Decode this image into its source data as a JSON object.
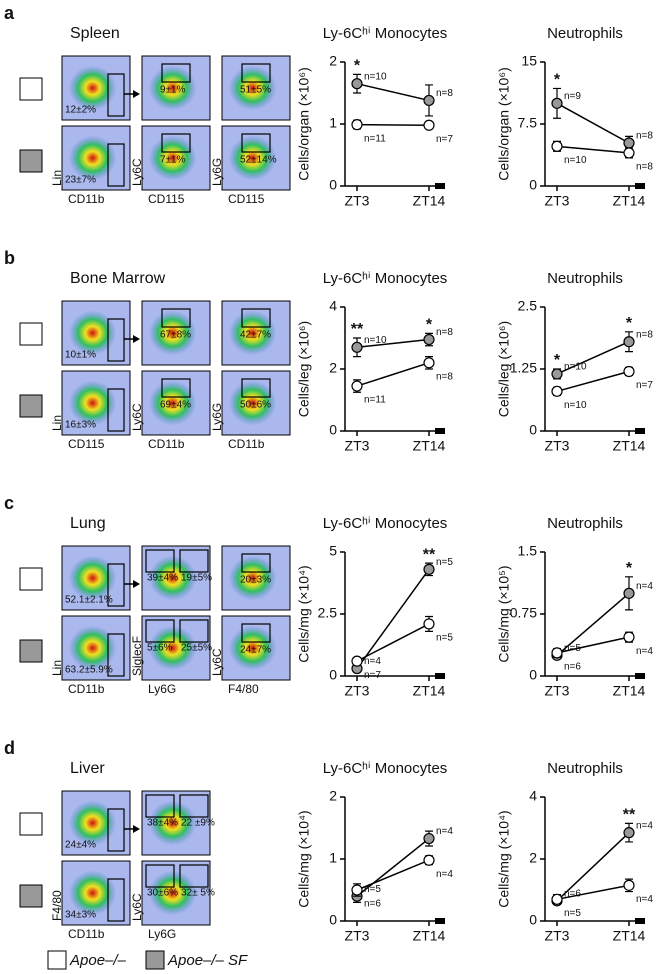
{
  "panels": [
    {
      "letter": "a",
      "tissue": "Spleen",
      "gates": [
        [
          [
            "12±2%"
          ],
          [
            "9±1%"
          ],
          [
            "51±5%"
          ]
        ],
        [
          [
            "23±7%"
          ],
          [
            "7±1%"
          ],
          [
            "52±14%"
          ]
        ]
      ],
      "x_axes": [
        "CD11b",
        "CD115",
        "CD115"
      ],
      "y_axes": [
        "Lin",
        "Ly6C",
        "Ly6G"
      ]
    },
    {
      "letter": "b",
      "tissue": "Bone Marrow",
      "gates": [
        [
          [
            "10±1%"
          ],
          [
            "67±8%"
          ],
          [
            "42±7%"
          ]
        ],
        [
          [
            "16±3%"
          ],
          [
            "69±4%"
          ],
          [
            "50±6%"
          ]
        ]
      ],
      "x_axes": [
        "CD115",
        "CD11b",
        "CD11b"
      ],
      "y_axes": [
        "Lin",
        "Ly6C",
        "Ly6G"
      ]
    },
    {
      "letter": "c",
      "tissue": "Lung",
      "gates": [
        [
          [
            "52.1±2.1%"
          ],
          [
            "39±4%",
            "19±5%"
          ],
          [
            "20±3%"
          ]
        ],
        [
          [
            "63.2±5.9%"
          ],
          [
            "5±6%",
            "25±5%"
          ],
          [
            "24±7%"
          ]
        ]
      ],
      "x_axes": [
        "CD11b",
        "Ly6G",
        "F4/80"
      ],
      "y_axes": [
        "Lin",
        "SiglecF",
        "Ly6C"
      ]
    },
    {
      "letter": "d",
      "tissue": "Liver",
      "gates": [
        [
          [
            "24±4%"
          ],
          [
            "38±4%",
            "22 ±9%"
          ]
        ],
        [
          [
            "34±3%"
          ],
          [
            "30±6%",
            "32± 5%"
          ]
        ]
      ],
      "x_axes": [
        "CD11b",
        "Ly6G"
      ],
      "y_axes": [
        "F4/80",
        "Ly6C"
      ]
    }
  ],
  "legend": [
    {
      "name": "Apoe–/–",
      "color": "#ffffff"
    },
    {
      "name": "Apoe–/– SF",
      "color": "#999999"
    }
  ],
  "chart_data": [
    {
      "type": "line",
      "title": "Ly-6Cʰⁱ Monocytes",
      "y_label": "Cells/organ (×10⁶)",
      "categories": [
        "ZT3",
        "ZT14"
      ],
      "ylim": [
        0,
        2
      ],
      "yticks": [
        0,
        1,
        2
      ],
      "series": [
        {
          "color": "#999999",
          "values": [
            1.65,
            1.38
          ],
          "errors": [
            0.15,
            0.25
          ],
          "n_labels": [
            "n=10",
            "n=8"
          ],
          "significance": [
            "*",
            null
          ]
        },
        {
          "color": "#ffffff",
          "values": [
            0.99,
            0.98
          ],
          "errors": [
            0.07,
            0.05
          ],
          "n_labels": [
            "n=11",
            "n=7"
          ]
        }
      ]
    },
    {
      "type": "line",
      "title": "Neutrophils",
      "y_label": "Cells/organ (×10⁶)",
      "categories": [
        "ZT3",
        "ZT14"
      ],
      "ylim": [
        0,
        15
      ],
      "yticks": [
        0,
        7.5,
        15
      ],
      "series": [
        {
          "color": "#999999",
          "values": [
            10,
            5.2
          ],
          "errors": [
            1.8,
            0.8
          ],
          "n_labels": [
            "n=9",
            "n=8"
          ],
          "significance": [
            "*",
            null
          ]
        },
        {
          "color": "#ffffff",
          "values": [
            4.8,
            4.0
          ],
          "errors": [
            0.6,
            0.6
          ],
          "n_labels": [
            "n=10",
            "n=8"
          ]
        }
      ]
    },
    {
      "type": "line",
      "title": "Ly-6Cʰⁱ Monocytes",
      "y_label": "Cells/leg (×10⁶)",
      "categories": [
        "ZT3",
        "ZT14"
      ],
      "ylim": [
        0,
        4
      ],
      "yticks": [
        0,
        2,
        4
      ],
      "series": [
        {
          "color": "#999999",
          "values": [
            2.7,
            2.95
          ],
          "errors": [
            0.3,
            0.2
          ],
          "n_labels": [
            "n=10",
            "n=8"
          ],
          "significance": [
            "**",
            "*"
          ]
        },
        {
          "color": "#ffffff",
          "values": [
            1.45,
            2.2
          ],
          "errors": [
            0.2,
            0.2
          ],
          "n_labels": [
            "n=11",
            "n=8"
          ]
        }
      ]
    },
    {
      "type": "line",
      "title": "Neutrophils",
      "y_label": "Cells/leg (×10⁶)",
      "categories": [
        "ZT3",
        "ZT14"
      ],
      "ylim": [
        0,
        2.5
      ],
      "yticks": [
        0,
        1.25,
        2.5
      ],
      "series": [
        {
          "color": "#999999",
          "values": [
            1.15,
            1.8
          ],
          "errors": [
            0.1,
            0.2
          ],
          "n_labels": [
            "n=10",
            "n=8"
          ],
          "significance": [
            "*",
            "*"
          ]
        },
        {
          "color": "#ffffff",
          "values": [
            0.8,
            1.2
          ],
          "errors": [
            0.08,
            0.08
          ],
          "n_labels": [
            "n=10",
            "n=7"
          ]
        }
      ]
    },
    {
      "type": "line",
      "title": "Ly-6Cʰⁱ Monocytes",
      "y_label": "Cells/mg (×10⁴)",
      "categories": [
        "ZT3",
        "ZT14"
      ],
      "ylim": [
        0,
        5
      ],
      "yticks": [
        0,
        2.5,
        5
      ],
      "series": [
        {
          "color": "#999999",
          "values": [
            0.3,
            4.3
          ],
          "errors": [
            0.1,
            0.25
          ],
          "n_labels": [
            "n=4",
            "n=5"
          ],
          "significance": [
            null,
            "**"
          ]
        },
        {
          "color": "#ffffff",
          "values": [
            0.6,
            2.1
          ],
          "errors": [
            0.1,
            0.3
          ],
          "n_labels": [
            "n=7",
            "n=5"
          ]
        }
      ]
    },
    {
      "type": "line",
      "title": "Neutrophils",
      "y_label": "Cells/mg (×10⁵)",
      "categories": [
        "ZT3",
        "ZT14"
      ],
      "ylim": [
        0,
        1.5
      ],
      "yticks": [
        0,
        0.75,
        1.5
      ],
      "series": [
        {
          "color": "#999999",
          "values": [
            0.25,
            1.0
          ],
          "errors": [
            0.03,
            0.2
          ],
          "n_labels": [
            "n=5",
            "n=4"
          ],
          "significance": [
            null,
            "*"
          ]
        },
        {
          "color": "#ffffff",
          "values": [
            0.28,
            0.47
          ],
          "errors": [
            0.05,
            0.06
          ],
          "n_labels": [
            "n=6",
            "n=4"
          ]
        }
      ]
    },
    {
      "type": "line",
      "title": "Ly-6Cʰⁱ Monocytes",
      "y_label": "Cells/mg (×10⁴)",
      "categories": [
        "ZT3",
        "ZT14"
      ],
      "ylim": [
        0,
        2
      ],
      "yticks": [
        0,
        1,
        2
      ],
      "series": [
        {
          "color": "#999999",
          "values": [
            0.4,
            1.33
          ],
          "errors": [
            0.1,
            0.12
          ],
          "n_labels": [
            "n=5",
            "n=4"
          ]
        },
        {
          "color": "#ffffff",
          "values": [
            0.5,
            0.98
          ],
          "errors": [
            0.1,
            0.07
          ],
          "n_labels": [
            "n=6",
            "n=4"
          ]
        }
      ]
    },
    {
      "type": "line",
      "title": "Neutrophils",
      "y_label": "Cells/mg (×10⁴)",
      "categories": [
        "ZT3",
        "ZT14"
      ],
      "ylim": [
        0,
        4
      ],
      "yticks": [
        0,
        2,
        4
      ],
      "series": [
        {
          "color": "#999999",
          "values": [
            0.65,
            2.85
          ],
          "errors": [
            0.1,
            0.3
          ],
          "n_labels": [
            "n=6",
            "n=4"
          ],
          "significance": [
            null,
            "**"
          ]
        },
        {
          "color": "#ffffff",
          "values": [
            0.7,
            1.15
          ],
          "errors": [
            0.15,
            0.2
          ],
          "n_labels": [
            "n=5",
            "n=4"
          ]
        }
      ]
    }
  ]
}
